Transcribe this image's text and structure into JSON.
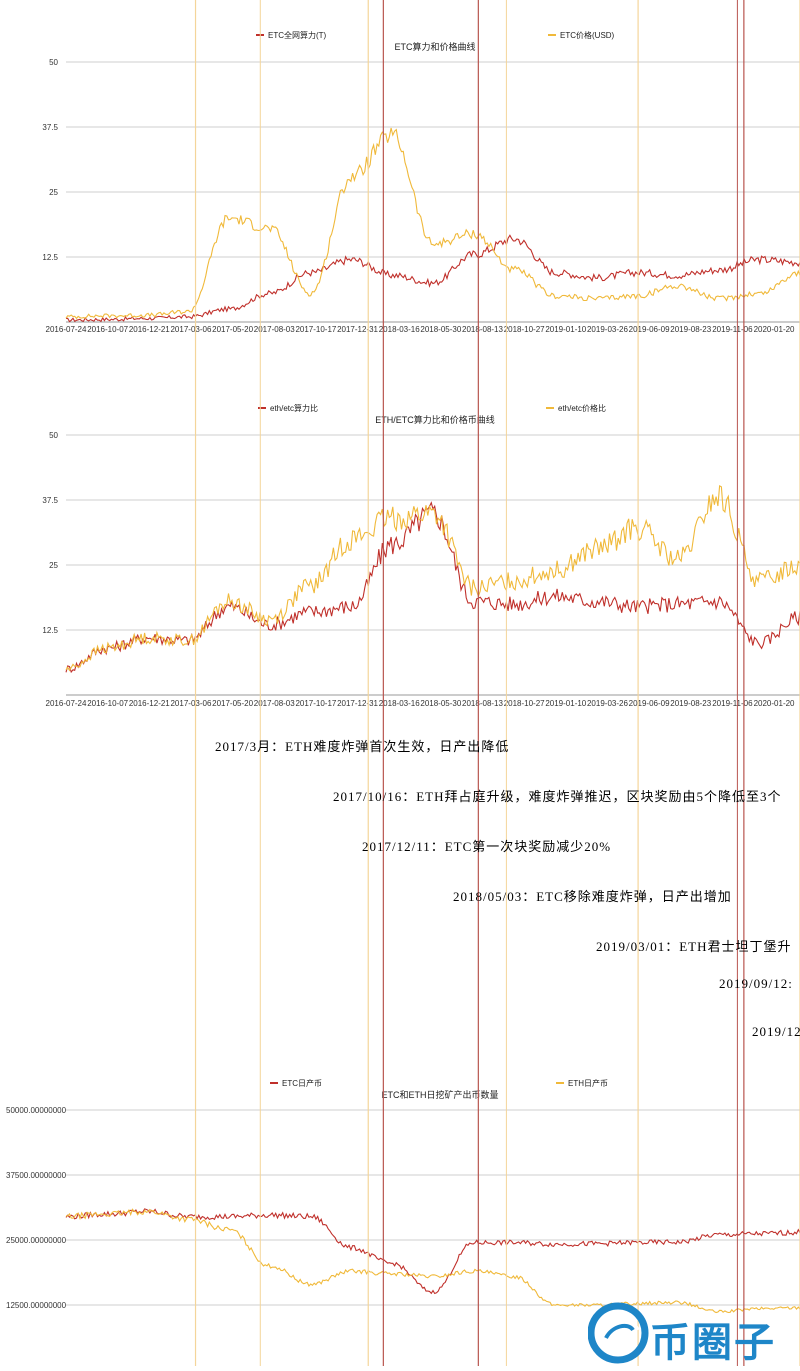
{
  "colors": {
    "red": "#c0302b",
    "orange": "#f0b93a",
    "vline_red": "#b8554f",
    "vline_orange": "#f4d59a",
    "grid": "#cfcfcf",
    "axis_text": "#333333",
    "watermark_blue": "#1e86c8"
  },
  "chart_data": [
    {
      "type": "line",
      "title": "ETC算力和价格曲线",
      "categories": [
        "2016-07-24",
        "2016-10-07",
        "2016-12-21",
        "2017-03-06",
        "2017-05-20",
        "2017-08-03",
        "2017-10-17",
        "2017-12-31",
        "2018-03-16",
        "2018-05-30",
        "2018-08-13",
        "2018-10-27",
        "2019-01-10",
        "2019-03-26",
        "2019-06-09",
        "2019-08-23",
        "2019-11-06",
        "2020-01-20"
      ],
      "y_ticks": [
        "50",
        "37.5",
        "25",
        "12.5"
      ],
      "ylim": [
        0,
        50
      ],
      "series": [
        {
          "name": "ETC全网算力(T)",
          "color": "red",
          "values": [
            0.4,
            0.5,
            0.7,
            1.0,
            2.5,
            5.5,
            9.5,
            12.0,
            9.0,
            7.5,
            13.0,
            16.0,
            9.5,
            8.5,
            9.5,
            9.0,
            10.0,
            12.0
          ],
          "end": 11.5
        },
        {
          "name": "ETC价格(USD)",
          "color": "orange",
          "values": [
            1.0,
            1.2,
            1.3,
            2.0,
            20.0,
            18.0,
            5.5,
            28.0,
            36.0,
            15.0,
            17.0,
            10.0,
            5.0,
            4.5,
            5.0,
            7.0,
            4.5,
            5.5
          ],
          "end": 9.5
        }
      ]
    },
    {
      "type": "line",
      "title": "ETH/ETC算力比和价格币曲线",
      "categories": [
        "2016-07-24",
        "2016-10-07",
        "2016-12-21",
        "2017-03-06",
        "2017-05-20",
        "2017-08-03",
        "2017-10-17",
        "2017-12-31",
        "2018-03-16",
        "2018-05-30",
        "2018-08-13",
        "2018-10-27",
        "2019-01-10",
        "2019-03-26",
        "2019-06-09",
        "2019-08-23",
        "2019-11-06",
        "2020-01-20"
      ],
      "y_ticks": [
        "50",
        "37.5",
        "25",
        "12.5"
      ],
      "ylim": [
        0,
        50
      ],
      "series": [
        {
          "name": "eth/etc算力比",
          "color": "red",
          "values": [
            5.0,
            9.0,
            11.0,
            10.5,
            17.0,
            13.5,
            16.0,
            17.0,
            29.0,
            35.0,
            18.0,
            17.5,
            19.0,
            18.0,
            17.0,
            17.5,
            18.0,
            10.0
          ],
          "end": 15.0
        },
        {
          "name": "eth/etc价格比",
          "color": "orange",
          "values": [
            5.0,
            9.0,
            11.0,
            10.5,
            18.0,
            14.5,
            21.0,
            30.0,
            34.0,
            35.0,
            20.5,
            22.0,
            24.0,
            28.0,
            32.0,
            26.0,
            38.0,
            22.0
          ],
          "end": 25.0
        }
      ]
    },
    {
      "type": "line",
      "title": "ETC和ETH日挖矿产出币数量",
      "y_ticks": [
        "50000.00000000",
        "37500.00000000",
        "25000.00000000",
        "12500.00000000"
      ],
      "ylim": [
        0,
        50000
      ],
      "series": [
        {
          "name": "ETC日产币",
          "color": "red",
          "values": [
            29500,
            30000,
            30500,
            29500,
            29500,
            29800,
            29500,
            23500,
            20500,
            15000,
            24500,
            24500,
            24200,
            24300,
            24500,
            24600,
            26000,
            26200
          ],
          "end": 26500
        },
        {
          "name": "ETH日产币",
          "color": "orange",
          "values": [
            29500,
            30000,
            30500,
            29000,
            27000,
            20000,
            16500,
            19000,
            18500,
            18000,
            19000,
            18000,
            12500,
            12500,
            12800,
            13000,
            11200,
            11800
          ],
          "end": 12000
        }
      ]
    }
  ],
  "events": [
    {
      "text": "2017/3月：ETH难度炸弹首次生效，日产出降低",
      "color": "orange",
      "index": 3.0
    },
    {
      "text": "2017/10/16：ETH拜占庭升级，难度炸弹推迟，区块奖励由5个降低至3个",
      "color": "orange",
      "index": 7.0
    },
    {
      "text": "2017/12/11：ETC第一次块奖励减少20%",
      "color": "red",
      "index": 7.35
    },
    {
      "text": "2018/05/03：ETC移除难度炸弹，日产出增加",
      "color": "red",
      "index": 9.55
    },
    {
      "text": "2019/03/01：ETH君士坦丁堡升",
      "color": "orange",
      "index": 13.25
    },
    {
      "text": "2019/09/12:",
      "color": "red",
      "index": 15.7
    },
    {
      "text": "2019/12",
      "color": "orange",
      "index": 17.0
    }
  ],
  "watermark": {
    "text": "币圈子"
  }
}
